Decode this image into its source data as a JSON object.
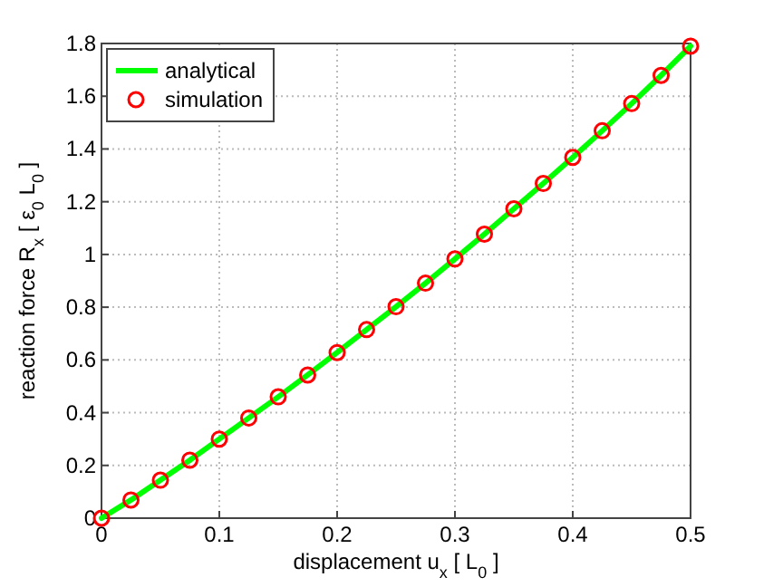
{
  "chart_data": {
    "type": "line",
    "xlabel": "displacement  u$_{x}$  [ L$_{0}$ ]",
    "ylabel": "reaction force  R$_{x}$  [ ε$_{0}$  L$_{0}$ ]",
    "x": [
      0,
      0.025,
      0.05,
      0.075,
      0.1,
      0.125,
      0.15,
      0.175,
      0.2,
      0.225,
      0.25,
      0.275,
      0.3,
      0.325,
      0.35,
      0.375,
      0.4,
      0.425,
      0.45,
      0.475,
      0.5
    ],
    "series": [
      {
        "name": "analytical",
        "color": "#00ff00",
        "marker": "none",
        "line_style": "solid",
        "values": [
          0,
          0.069,
          0.144,
          0.22,
          0.3,
          0.38,
          0.46,
          0.543,
          0.628,
          0.715,
          0.802,
          0.891,
          0.983,
          1.077,
          1.173,
          1.269,
          1.368,
          1.469,
          1.572,
          1.679,
          1.79
        ]
      },
      {
        "name": "simulation",
        "type": "scatter",
        "color": "#ff0000",
        "marker": "circle",
        "values": [
          0,
          0.069,
          0.144,
          0.22,
          0.3,
          0.38,
          0.46,
          0.543,
          0.628,
          0.715,
          0.802,
          0.891,
          0.983,
          1.077,
          1.173,
          1.269,
          1.368,
          1.469,
          1.572,
          1.679,
          1.79
        ]
      }
    ],
    "xlim": [
      0,
      0.5
    ],
    "xticks": [
      0,
      0.1,
      0.2,
      0.3,
      0.4,
      0.5
    ],
    "ylim": [
      0,
      1.8
    ],
    "yticks": [
      0,
      0.2,
      0.4,
      0.6,
      0.8,
      1,
      1.2,
      1.4,
      1.6,
      1.8
    ],
    "grid": true,
    "legend": "top left"
  }
}
